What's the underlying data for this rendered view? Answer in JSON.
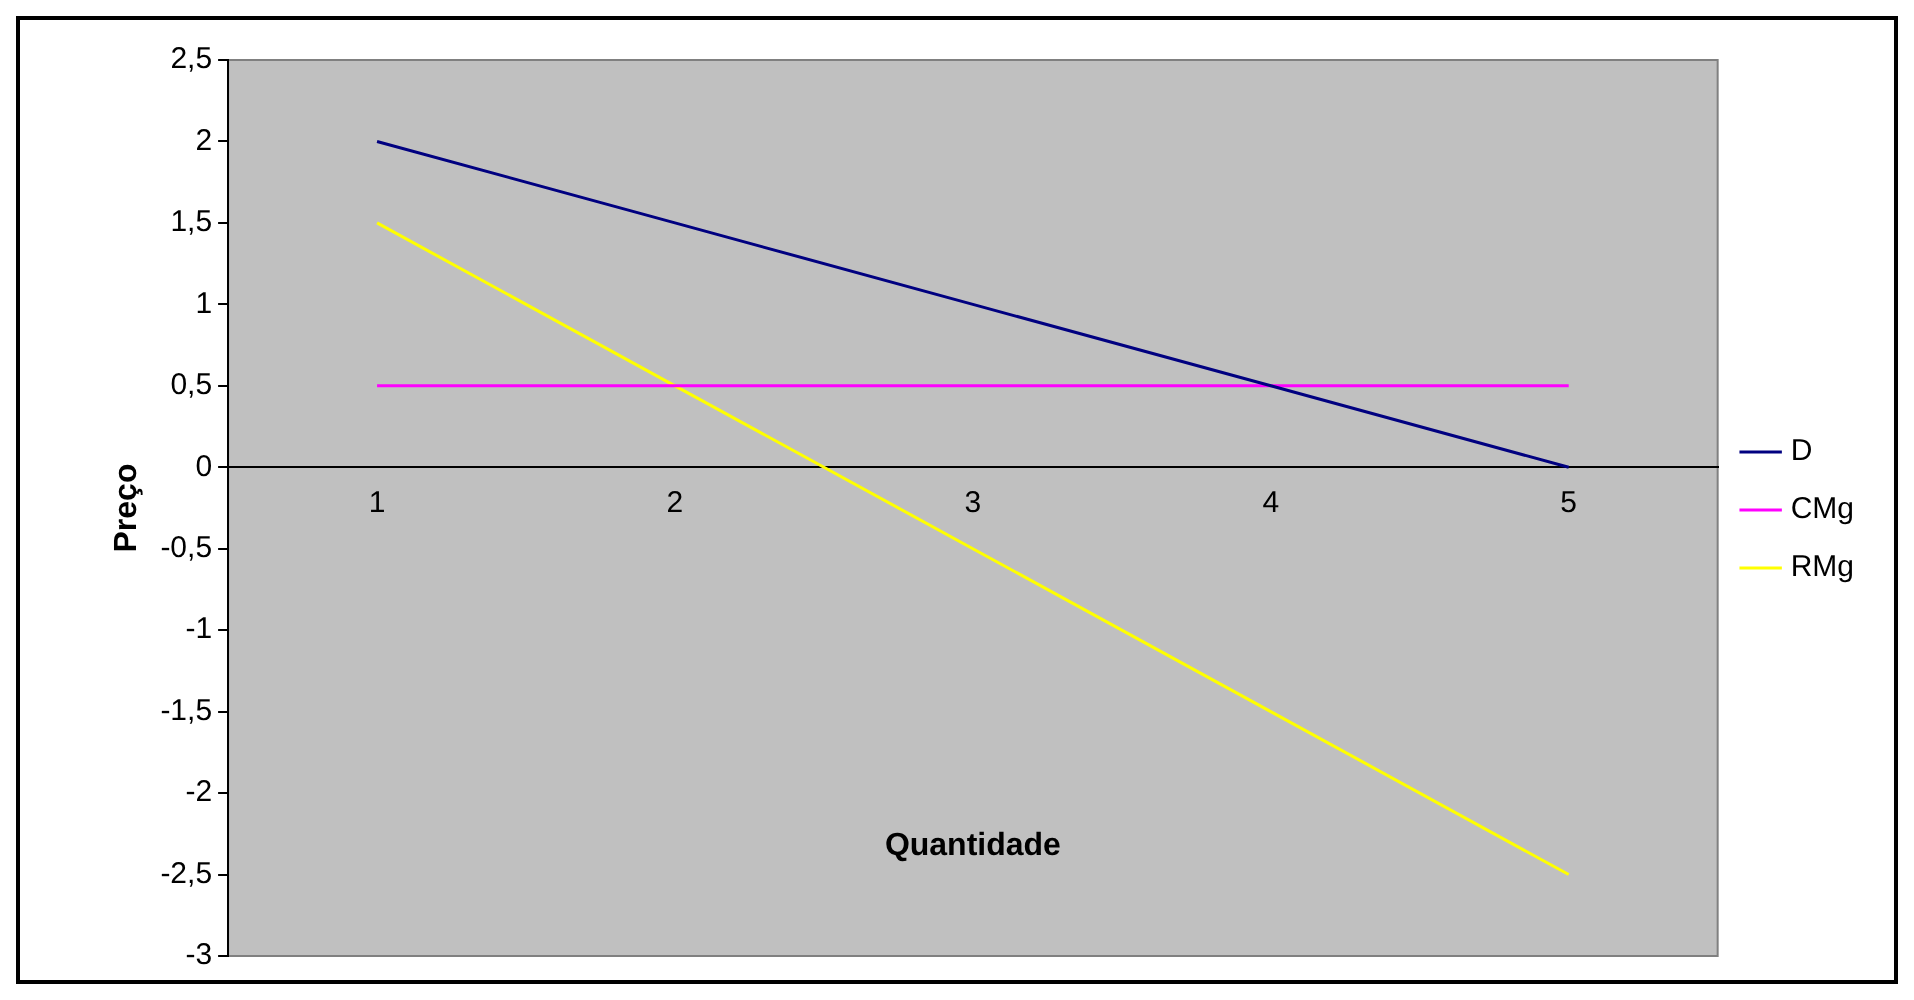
{
  "chart_data": {
    "type": "line",
    "xlabel": "Quantidade",
    "ylabel": "Preço",
    "categories": [
      "1",
      "2",
      "3",
      "4",
      "5"
    ],
    "series": [
      {
        "name": "D",
        "color": "#000080",
        "values": [
          2,
          1.5,
          1,
          0.5,
          0
        ]
      },
      {
        "name": "CMg",
        "color": "#ff00ff",
        "values": [
          0.5,
          0.5,
          0.5,
          0.5,
          0.5
        ]
      },
      {
        "name": "RMg",
        "color": "#ffff00",
        "values": [
          1.5,
          0.5,
          -0.5,
          -1.5,
          -2.5
        ]
      }
    ],
    "ylim": [
      -3,
      2.5
    ],
    "yticks": [
      {
        "value": -3,
        "label": "-3"
      },
      {
        "value": -2.5,
        "label": "-2,5"
      },
      {
        "value": -2,
        "label": "-2"
      },
      {
        "value": -1.5,
        "label": "-1,5"
      },
      {
        "value": -1,
        "label": "-1"
      },
      {
        "value": -0.5,
        "label": "-0,5"
      },
      {
        "value": 0,
        "label": "0"
      },
      {
        "value": 0.5,
        "label": "0,5"
      },
      {
        "value": 1,
        "label": "1"
      },
      {
        "value": 1.5,
        "label": "1,5"
      },
      {
        "value": 2,
        "label": "2"
      },
      {
        "value": 2.5,
        "label": "2,5"
      }
    ],
    "grid": false,
    "legend": "right",
    "marker": "none",
    "line_style": "solid"
  }
}
